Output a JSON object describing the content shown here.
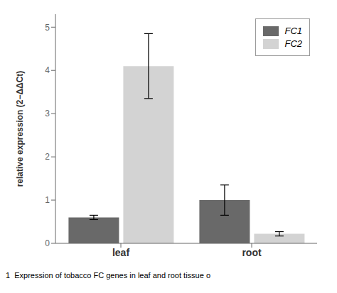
{
  "chart_data": {
    "type": "bar",
    "categories": [
      "leaf",
      "root"
    ],
    "series": [
      {
        "name": "FC1",
        "color": "#696969",
        "values": [
          0.6,
          1.0
        ],
        "errors": [
          0.05,
          0.35
        ]
      },
      {
        "name": "FC2",
        "color": "#d3d3d3",
        "values": [
          4.1,
          0.22
        ],
        "errors": [
          0.75,
          0.05
        ]
      }
    ],
    "y_label": "relative expression (2−ΔΔCt)",
    "ylim": [
      0,
      5.3
    ],
    "yticks": [
      0,
      1,
      2,
      3,
      4,
      5
    ],
    "grid": false,
    "legend": "upper right",
    "annotations": [
      "1  Expression of tobacco FC genes in leaf and root tissue o"
    ]
  }
}
